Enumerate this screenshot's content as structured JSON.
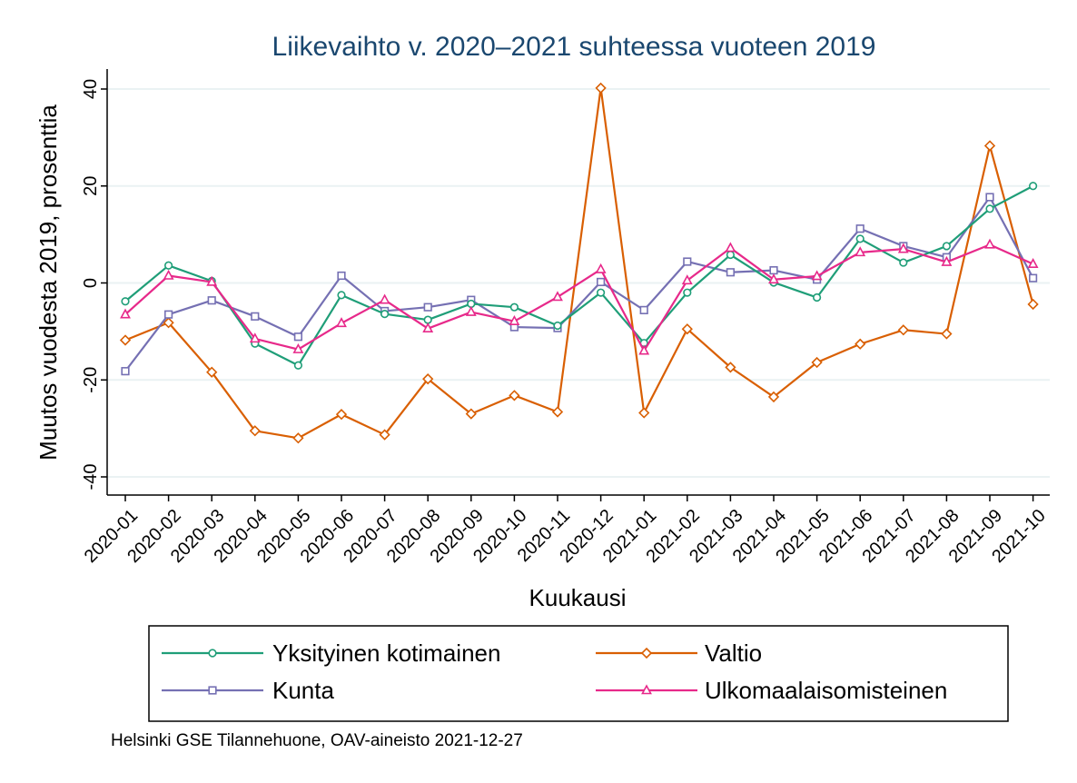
{
  "chart_data": {
    "type": "line",
    "title": "Liikevaihto v. 2020–2021 suhteessa vuoteen 2019",
    "xlabel": "Kuukausi",
    "ylabel": "Muutos vuodesta 2019, prosenttia",
    "ylim": [
      -40,
      40
    ],
    "yticks": [
      -40,
      -20,
      0,
      20,
      40
    ],
    "grid": true,
    "legend_position": "bottom",
    "categories": [
      "2020-01",
      "2020-02",
      "2020-03",
      "2020-04",
      "2020-05",
      "2020-06",
      "2020-07",
      "2020-08",
      "2020-09",
      "2020-10",
      "2020-11",
      "2020-12",
      "2021-01",
      "2021-02",
      "2021-03",
      "2021-04",
      "2021-05",
      "2021-06",
      "2021-07",
      "2021-08",
      "2021-09",
      "2021-10"
    ],
    "series": [
      {
        "name": "Yksityinen kotimainen",
        "color": "#1f9e78",
        "marker": "circle",
        "values": [
          -3.8,
          3.6,
          0.4,
          -12.5,
          -17.0,
          -2.5,
          -6.4,
          -7.6,
          -4.3,
          -5.0,
          -8.8,
          -2.0,
          -12.4,
          -2.0,
          5.8,
          0.1,
          -3.0,
          9.1,
          4.2,
          7.6,
          15.3,
          20.0
        ]
      },
      {
        "name": "Valtio",
        "color": "#d95f02",
        "marker": "diamond",
        "values": [
          -11.8,
          -8.2,
          -18.4,
          -30.5,
          -32.0,
          -27.1,
          -31.3,
          -19.8,
          -27.0,
          -23.2,
          -26.6,
          40.2,
          -26.8,
          -9.5,
          -17.4,
          -23.5,
          -16.4,
          -12.6,
          -9.7,
          -10.5,
          28.3,
          -4.4
        ]
      },
      {
        "name": "Kunta",
        "color": "#7570b3",
        "marker": "square",
        "values": [
          -18.2,
          -6.5,
          -3.6,
          -6.9,
          -11.1,
          1.5,
          -5.8,
          -5.0,
          -3.5,
          -9.1,
          -9.3,
          0.2,
          -5.6,
          4.4,
          2.2,
          2.6,
          0.7,
          11.2,
          7.6,
          5.3,
          17.7,
          1.0
        ]
      },
      {
        "name": "Ulkomaalaisomisteinen",
        "color": "#e7298a",
        "marker": "triangle",
        "values": [
          -6.5,
          1.5,
          0.2,
          -11.5,
          -13.7,
          -8.3,
          -3.5,
          -9.4,
          -6.0,
          -7.9,
          -2.9,
          2.8,
          -14.0,
          0.5,
          7.2,
          0.7,
          1.4,
          6.3,
          7.0,
          4.3,
          7.9,
          3.9
        ]
      }
    ]
  },
  "legend": {
    "items": [
      {
        "label": "Yksityinen kotimainen"
      },
      {
        "label": "Valtio"
      },
      {
        "label": "Kunta"
      },
      {
        "label": "Ulkomaalaisomisteinen"
      }
    ]
  },
  "footer": {
    "source": "Helsinki GSE Tilannehuone, OAV-aineisto 2021-12-27"
  }
}
